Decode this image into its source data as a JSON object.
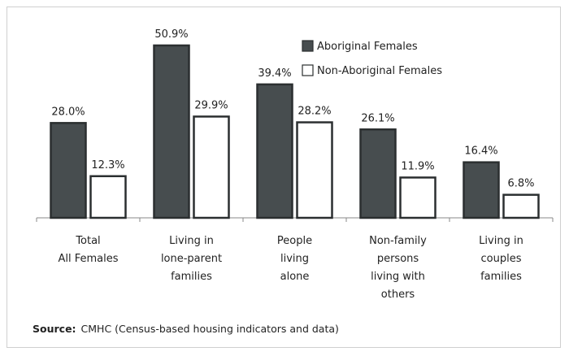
{
  "chart_data": {
    "type": "bar",
    "categories": [
      "Total\nAll Females",
      "Living in\nlone-parent\nfamilies",
      "People\nliving\nalone",
      "Non-family\npersons\nliving with\nothers",
      "Living in\ncouples\nfamilies"
    ],
    "series": [
      {
        "name": "Aboriginal Females",
        "color": "#474d4f",
        "values": [
          28.0,
          50.9,
          39.4,
          26.1,
          16.4
        ],
        "value_labels": [
          "28.0%",
          "50.9%",
          "39.4%",
          "26.1%",
          "16.4%"
        ]
      },
      {
        "name": "Non-Aboriginal Females",
        "color": "#ffffff",
        "values": [
          12.3,
          29.9,
          28.2,
          11.9,
          6.8
        ],
        "value_labels": [
          "12.3%",
          "29.9%",
          "28.2%",
          "11.9%",
          "6.8%"
        ]
      }
    ],
    "ylim": [
      0,
      60
    ],
    "source_label": "Source:",
    "source_text": "CMHC (Census-based housing indicators and data)"
  }
}
